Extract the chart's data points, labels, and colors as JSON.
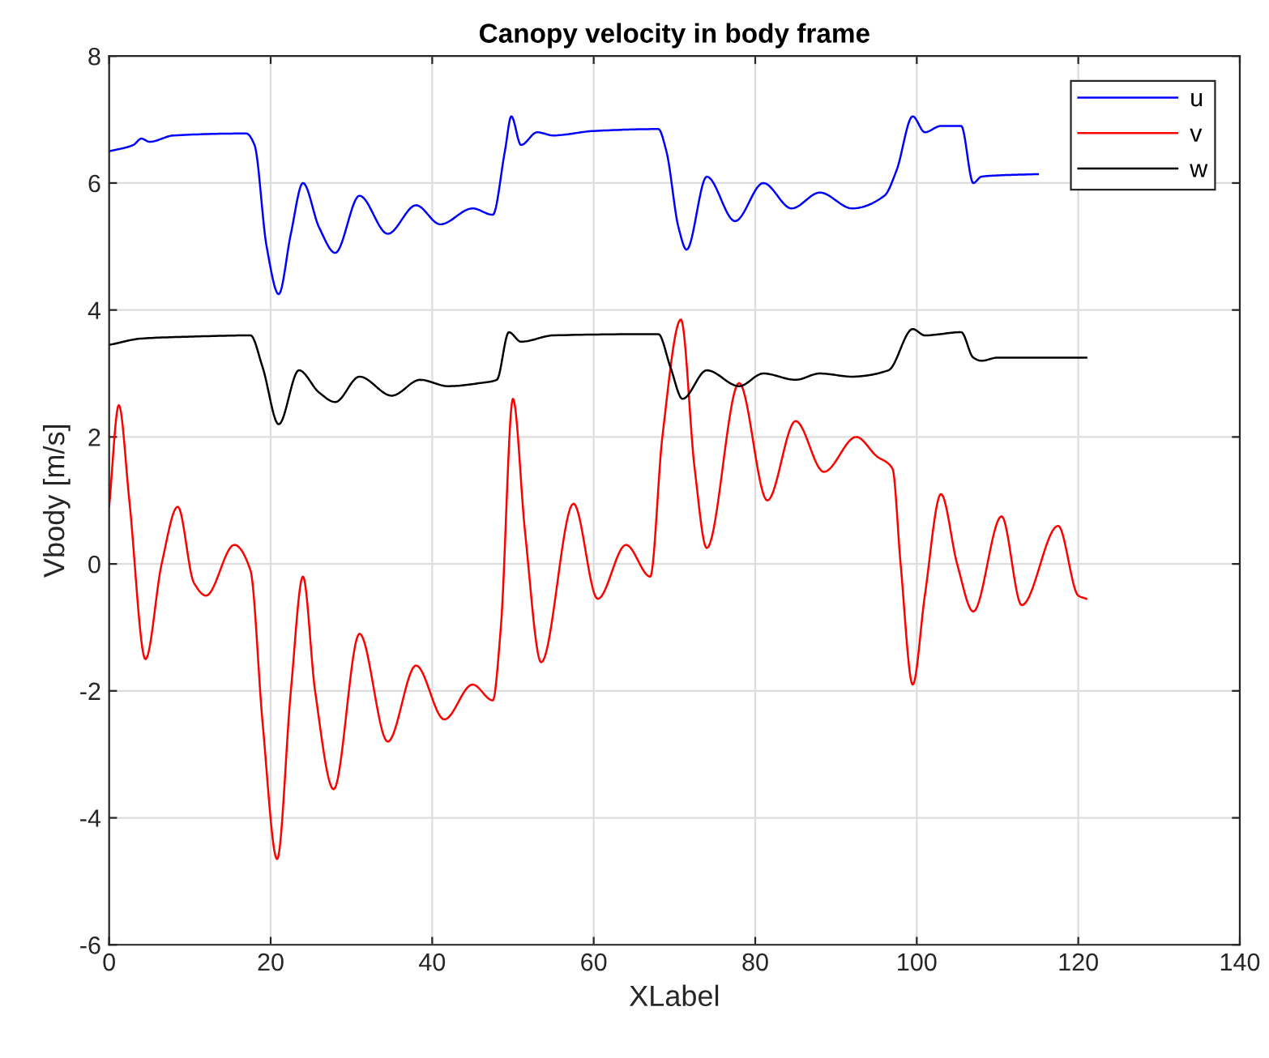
{
  "chart_data": {
    "type": "line",
    "title": "Canopy velocity in body frame",
    "xlabel": "XLabel",
    "ylabel": "Vbody [m/s]",
    "xlim": [
      0,
      140
    ],
    "xticks": [
      0,
      20,
      40,
      60,
      80,
      100,
      120,
      140
    ],
    "ylim": [
      -6,
      8
    ],
    "yticks": [
      -6,
      -4,
      -2,
      0,
      2,
      4,
      6,
      8
    ],
    "grid": true,
    "legend": "top right",
    "marker": "none",
    "line_style": "solid",
    "series": [
      {
        "name": "u",
        "color": "#0000ff",
        "x": [
          0,
          3,
          4,
          5,
          8,
          17,
          18,
          19.5,
          21,
          22.5,
          24,
          26,
          28,
          31,
          34.5,
          38,
          41,
          45,
          47.5,
          49,
          49.8,
          51,
          53,
          55,
          60,
          68,
          69,
          70.5,
          71.5,
          74,
          77.5,
          81,
          84.5,
          88,
          92,
          96,
          97.5,
          99.5,
          101,
          103,
          105.5,
          107,
          108,
          110,
          115
        ],
        "values": [
          6.5,
          6.6,
          6.7,
          6.65,
          6.75,
          6.78,
          6.6,
          5.0,
          4.25,
          5.2,
          6.0,
          5.3,
          4.9,
          5.8,
          5.2,
          5.65,
          5.35,
          5.6,
          5.5,
          6.5,
          7.05,
          6.6,
          6.8,
          6.75,
          6.82,
          6.85,
          6.5,
          5.3,
          4.95,
          6.1,
          5.4,
          6.0,
          5.6,
          5.85,
          5.6,
          5.8,
          6.2,
          7.05,
          6.8,
          6.9,
          6.9,
          6.0,
          6.1,
          6.12,
          6.14
        ]
      },
      {
        "name": "v",
        "color": "#ff0000",
        "x": [
          0,
          1.2,
          2.5,
          4.5,
          6.5,
          8.5,
          10.5,
          12,
          15.5,
          17.5,
          19,
          20.8,
          22.5,
          24,
          25.5,
          27.8,
          31,
          34.5,
          38,
          41.5,
          45,
          47.5,
          48.5,
          50,
          51.5,
          53.5,
          57.5,
          60.5,
          64,
          67,
          68.5,
          70.8,
          72.5,
          74,
          78,
          81.5,
          85,
          88.5,
          92.5,
          95,
          97,
          98,
          99.5,
          101,
          103,
          105,
          107,
          110.5,
          113,
          117.5,
          120,
          121
        ],
        "values": [
          0.9,
          2.5,
          1.0,
          -1.5,
          0,
          0.9,
          -0.3,
          -0.5,
          0.3,
          -0.1,
          -2.5,
          -4.65,
          -2.0,
          -0.2,
          -2.0,
          -3.55,
          -1.1,
          -2.8,
          -1.6,
          -2.45,
          -1.9,
          -2.15,
          -1.0,
          2.6,
          0.5,
          -1.55,
          0.95,
          -0.55,
          0.3,
          -0.2,
          2.0,
          3.85,
          1.5,
          0.25,
          2.85,
          1.0,
          2.25,
          1.45,
          2.0,
          1.7,
          1.5,
          0,
          -1.9,
          -0.5,
          1.1,
          0.0,
          -0.75,
          0.75,
          -0.65,
          0.6,
          -0.5,
          -0.55
        ]
      },
      {
        "name": "w",
        "color": "#000000",
        "x": [
          0,
          4,
          10,
          17.5,
          19,
          21,
          23.5,
          26,
          28,
          31,
          35,
          38.5,
          42,
          46,
          48,
          49.5,
          51,
          55,
          68,
          69.5,
          71,
          74,
          78,
          81,
          85,
          88,
          92,
          96.5,
          99.5,
          101,
          105.5,
          107,
          108,
          110,
          121
        ],
        "values": [
          3.45,
          3.55,
          3.58,
          3.6,
          3.1,
          2.2,
          3.05,
          2.7,
          2.55,
          2.95,
          2.65,
          2.9,
          2.8,
          2.85,
          2.9,
          3.65,
          3.5,
          3.6,
          3.62,
          3.1,
          2.6,
          3.05,
          2.8,
          3.0,
          2.9,
          3.0,
          2.95,
          3.05,
          3.7,
          3.6,
          3.65,
          3.25,
          3.2,
          3.25,
          3.25
        ]
      }
    ]
  }
}
